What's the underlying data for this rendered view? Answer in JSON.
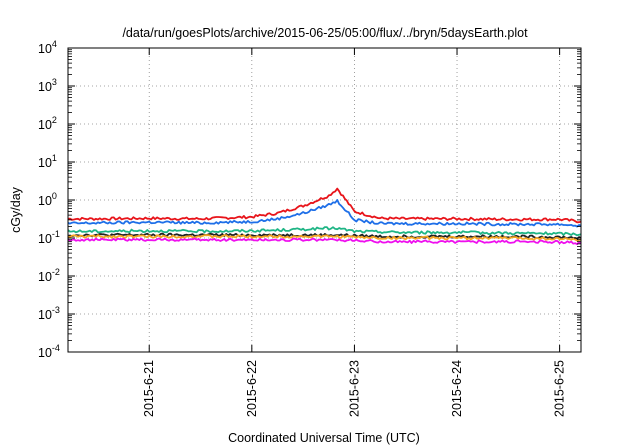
{
  "chart_data": {
    "type": "line",
    "title": "/data/run/goesPlots/archive/2015-06-25/05:00/flux/../bryn/5daysEarth.plot",
    "xlabel": "Coordinated Universal Time (UTC)",
    "ylabel": "cGy/day",
    "yscale": "log",
    "ylim": [
      0.0001,
      10000
    ],
    "xlim": [
      "2015-06-20T05:00",
      "2015-06-25T05:00"
    ],
    "grid": true,
    "legend": "none",
    "y_ticks": [
      {
        "value": 0.0001,
        "base": "10",
        "exp": "-4"
      },
      {
        "value": 0.001,
        "base": "10",
        "exp": "-3"
      },
      {
        "value": 0.01,
        "base": "10",
        "exp": "-2"
      },
      {
        "value": 0.1,
        "base": "10",
        "exp": "-1"
      },
      {
        "value": 1,
        "base": "10",
        "exp": "0"
      },
      {
        "value": 10,
        "base": "10",
        "exp": "1"
      },
      {
        "value": 100,
        "base": "10",
        "exp": "2"
      },
      {
        "value": 1000,
        "base": "10",
        "exp": "3"
      },
      {
        "value": 10000,
        "base": "10",
        "exp": "4"
      }
    ],
    "x_ticks": [
      {
        "value": "2015-06-21T00:00",
        "label": "2015-6-21"
      },
      {
        "value": "2015-06-22T00:00",
        "label": "2015-6-22"
      },
      {
        "value": "2015-06-23T00:00",
        "label": "2015-6-23"
      },
      {
        "value": "2015-06-24T00:00",
        "label": "2015-6-24"
      },
      {
        "value": "2015-06-25T00:00",
        "label": "2015-6-25"
      }
    ],
    "x": [
      "2015-06-20T05:00",
      "2015-06-20T12:00",
      "2015-06-21T00:00",
      "2015-06-21T12:00",
      "2015-06-22T00:00",
      "2015-06-22T06:00",
      "2015-06-22T12:00",
      "2015-06-22T18:00",
      "2015-06-22T20:00",
      "2015-06-23T00:00",
      "2015-06-23T06:00",
      "2015-06-23T12:00",
      "2015-06-24T00:00",
      "2015-06-24T12:00",
      "2015-06-25T00:00",
      "2015-06-25T05:00"
    ],
    "series": [
      {
        "color": "#e8141a",
        "values": [
          0.32,
          0.32,
          0.33,
          0.32,
          0.36,
          0.45,
          0.7,
          1.3,
          2.0,
          0.5,
          0.33,
          0.32,
          0.32,
          0.31,
          0.31,
          0.27
        ]
      },
      {
        "color": "#1e6fe8",
        "values": [
          0.24,
          0.25,
          0.26,
          0.25,
          0.27,
          0.32,
          0.45,
          0.75,
          0.95,
          0.3,
          0.24,
          0.24,
          0.24,
          0.23,
          0.23,
          0.21
        ]
      },
      {
        "color": "#1fb585",
        "values": [
          0.15,
          0.15,
          0.155,
          0.15,
          0.155,
          0.16,
          0.17,
          0.18,
          0.18,
          0.15,
          0.145,
          0.14,
          0.14,
          0.135,
          0.13,
          0.125
        ]
      },
      {
        "color": "#222222",
        "values": [
          0.12,
          0.12,
          0.12,
          0.12,
          0.12,
          0.12,
          0.12,
          0.12,
          0.12,
          0.115,
          0.11,
          0.11,
          0.11,
          0.11,
          0.105,
          0.1
        ]
      },
      {
        "color": "#f5a623",
        "values": [
          0.11,
          0.11,
          0.11,
          0.11,
          0.11,
          0.11,
          0.11,
          0.11,
          0.11,
          0.105,
          0.1,
          0.1,
          0.1,
          0.1,
          0.095,
          0.09
        ]
      },
      {
        "color": "#ee10ee",
        "values": [
          0.09,
          0.09,
          0.09,
          0.09,
          0.09,
          0.09,
          0.09,
          0.09,
          0.09,
          0.085,
          0.08,
          0.08,
          0.08,
          0.08,
          0.078,
          0.072
        ]
      }
    ]
  }
}
